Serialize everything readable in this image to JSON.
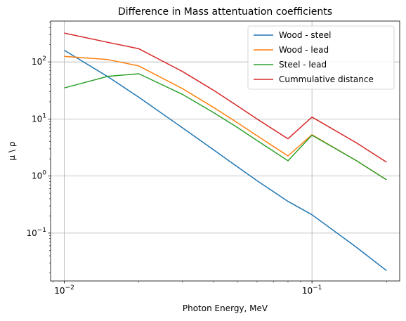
{
  "chart_data": {
    "type": "line",
    "title": "Difference in Mass attentuation coefficients",
    "xlabel": "Photon Energy, MeV",
    "ylabel": "μ \\ ρ",
    "xscale": "log",
    "yscale": "log",
    "xlim": [
      0.0088,
      0.226
    ],
    "ylim": [
      0.0145,
      520
    ],
    "grid": true,
    "legend_position": "upper right",
    "x": [
      0.01,
      0.015,
      0.02,
      0.03,
      0.04,
      0.05,
      0.06,
      0.08,
      0.1,
      0.15,
      0.2
    ],
    "series": [
      {
        "name": "Wood - steel",
        "color": "#1f77b4",
        "values": [
          160,
          55,
          24,
          7.0,
          2.9,
          1.45,
          0.83,
          0.36,
          0.21,
          0.058,
          0.022
        ]
      },
      {
        "name": "Wood - lead",
        "color": "#ff7f0e",
        "values": [
          125,
          110,
          85,
          34,
          16,
          8.6,
          5.1,
          2.25,
          5.3,
          1.9,
          0.86
        ]
      },
      {
        "name": "Steel - lead",
        "color": "#2ca02c",
        "values": [
          35,
          56,
          62,
          27,
          13,
          7.1,
          4.2,
          1.85,
          5.2,
          1.9,
          0.86
        ]
      },
      {
        "name": "Cummulative distance",
        "color": "#d62728",
        "values": [
          320,
          220,
          170,
          68,
          32,
          17,
          10,
          4.5,
          10.8,
          3.9,
          1.75
        ]
      }
    ],
    "x_ticks": [
      {
        "value": 0.01,
        "base": "10",
        "exp": "−2"
      },
      {
        "value": 0.1,
        "base": "10",
        "exp": "−1"
      }
    ],
    "y_ticks": [
      {
        "value": 0.1,
        "base": "10",
        "exp": "−1"
      },
      {
        "value": 1,
        "base": "10",
        "exp": "0"
      },
      {
        "value": 10,
        "base": "10",
        "exp": "1"
      },
      {
        "value": 100,
        "base": "10",
        "exp": "2"
      }
    ]
  }
}
